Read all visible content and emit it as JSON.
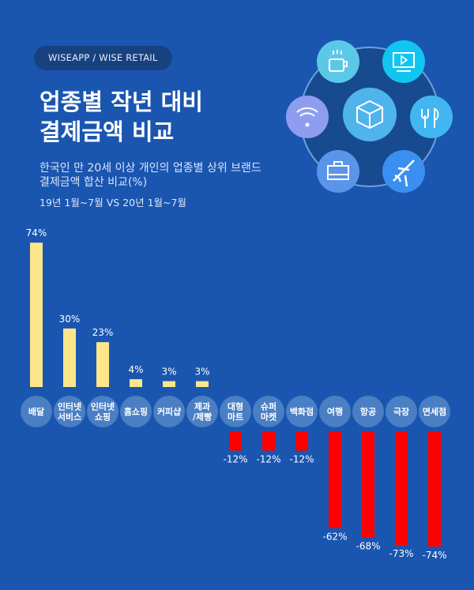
{
  "header": {
    "badge": "WISEAPP / WISE RETAIL",
    "title_line1": "업종별 작년 대비",
    "title_line2": "결제금액 비교",
    "subtitle_line1": "한국인 만 20세 이상 개인의 업종별 상위 브랜드",
    "subtitle_line2": "결제금액 합산 비교(%)",
    "period": "19년 1월~7월 VS 20년 1월~7월"
  },
  "icons": [
    "coffee-cup-icon",
    "tv-play-icon",
    "wifi-icon",
    "package-box-icon",
    "fork-knife-icon",
    "briefcase-icon",
    "airplane-icon"
  ],
  "colors": {
    "background": "#1a56b0",
    "positive": "#fde68a",
    "negative": "#ff0000",
    "category_circle": "#4a7fc4"
  },
  "chart_data": {
    "type": "bar",
    "title": "업종별 작년 대비 결제금액 비교",
    "xlabel": "",
    "ylabel": "%",
    "categories": [
      [
        "배달"
      ],
      [
        "인터넷",
        "서비스"
      ],
      [
        "인터넷",
        "쇼핑"
      ],
      [
        "홈쇼핑"
      ],
      [
        "커피샵"
      ],
      [
        "제과",
        "/제빵"
      ],
      [
        "대형",
        "마트"
      ],
      [
        "슈퍼",
        "마켓"
      ],
      [
        "백화점"
      ],
      [
        "여행"
      ],
      [
        "항공"
      ],
      [
        "극장"
      ],
      [
        "면세점"
      ]
    ],
    "values": [
      74,
      30,
      23,
      4,
      3,
      3,
      -12,
      -12,
      -12,
      -62,
      -68,
      -73,
      -74
    ],
    "value_labels": [
      "74%",
      "30%",
      "23%",
      "4%",
      "3%",
      "3%",
      "-12%",
      "-12%",
      "-12%",
      "-62%",
      "-68%",
      "-73%",
      "-74%"
    ],
    "ylim": [
      -74,
      74
    ],
    "grid": false
  }
}
